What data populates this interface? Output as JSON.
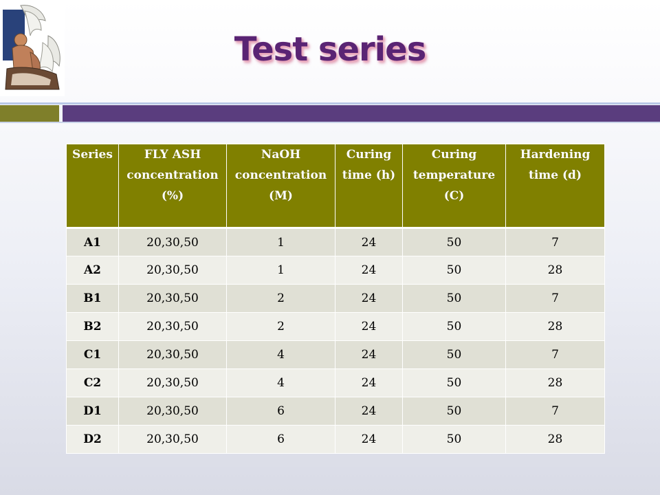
{
  "logo": {
    "icon": "greek-figure-with-wings-logo"
  },
  "title": "Test series",
  "colors": {
    "title": "#5a2474",
    "band_left": "#7f7f2a",
    "band_right": "#5a3d7e",
    "table_header": "#808000",
    "row_odd": "#e0e0d5",
    "row_even": "#efefe9"
  },
  "table": {
    "headers": [
      "Series",
      "FLY ASH\nconcentration\n(%)",
      "NaOH\nconcentration\n(M)",
      "Curing\ntime (h)",
      "Curing\ntemperature\n(C)",
      "Hardening\ntime (d)"
    ],
    "rows": [
      [
        "A1",
        "20,30,50",
        "1",
        "24",
        "50",
        "7"
      ],
      [
        "A2",
        "20,30,50",
        "1",
        "24",
        "50",
        "28"
      ],
      [
        "B1",
        "20,30,50",
        "2",
        "24",
        "50",
        "7"
      ],
      [
        "B2",
        "20,30,50",
        "2",
        "24",
        "50",
        "28"
      ],
      [
        "C1",
        "20,30,50",
        "4",
        "24",
        "50",
        "7"
      ],
      [
        "C2",
        "20,30,50",
        "4",
        "24",
        "50",
        "28"
      ],
      [
        "D1",
        "20,30,50",
        "6",
        "24",
        "50",
        "7"
      ],
      [
        "D2",
        "20,30,50",
        "6",
        "24",
        "50",
        "28"
      ]
    ]
  }
}
